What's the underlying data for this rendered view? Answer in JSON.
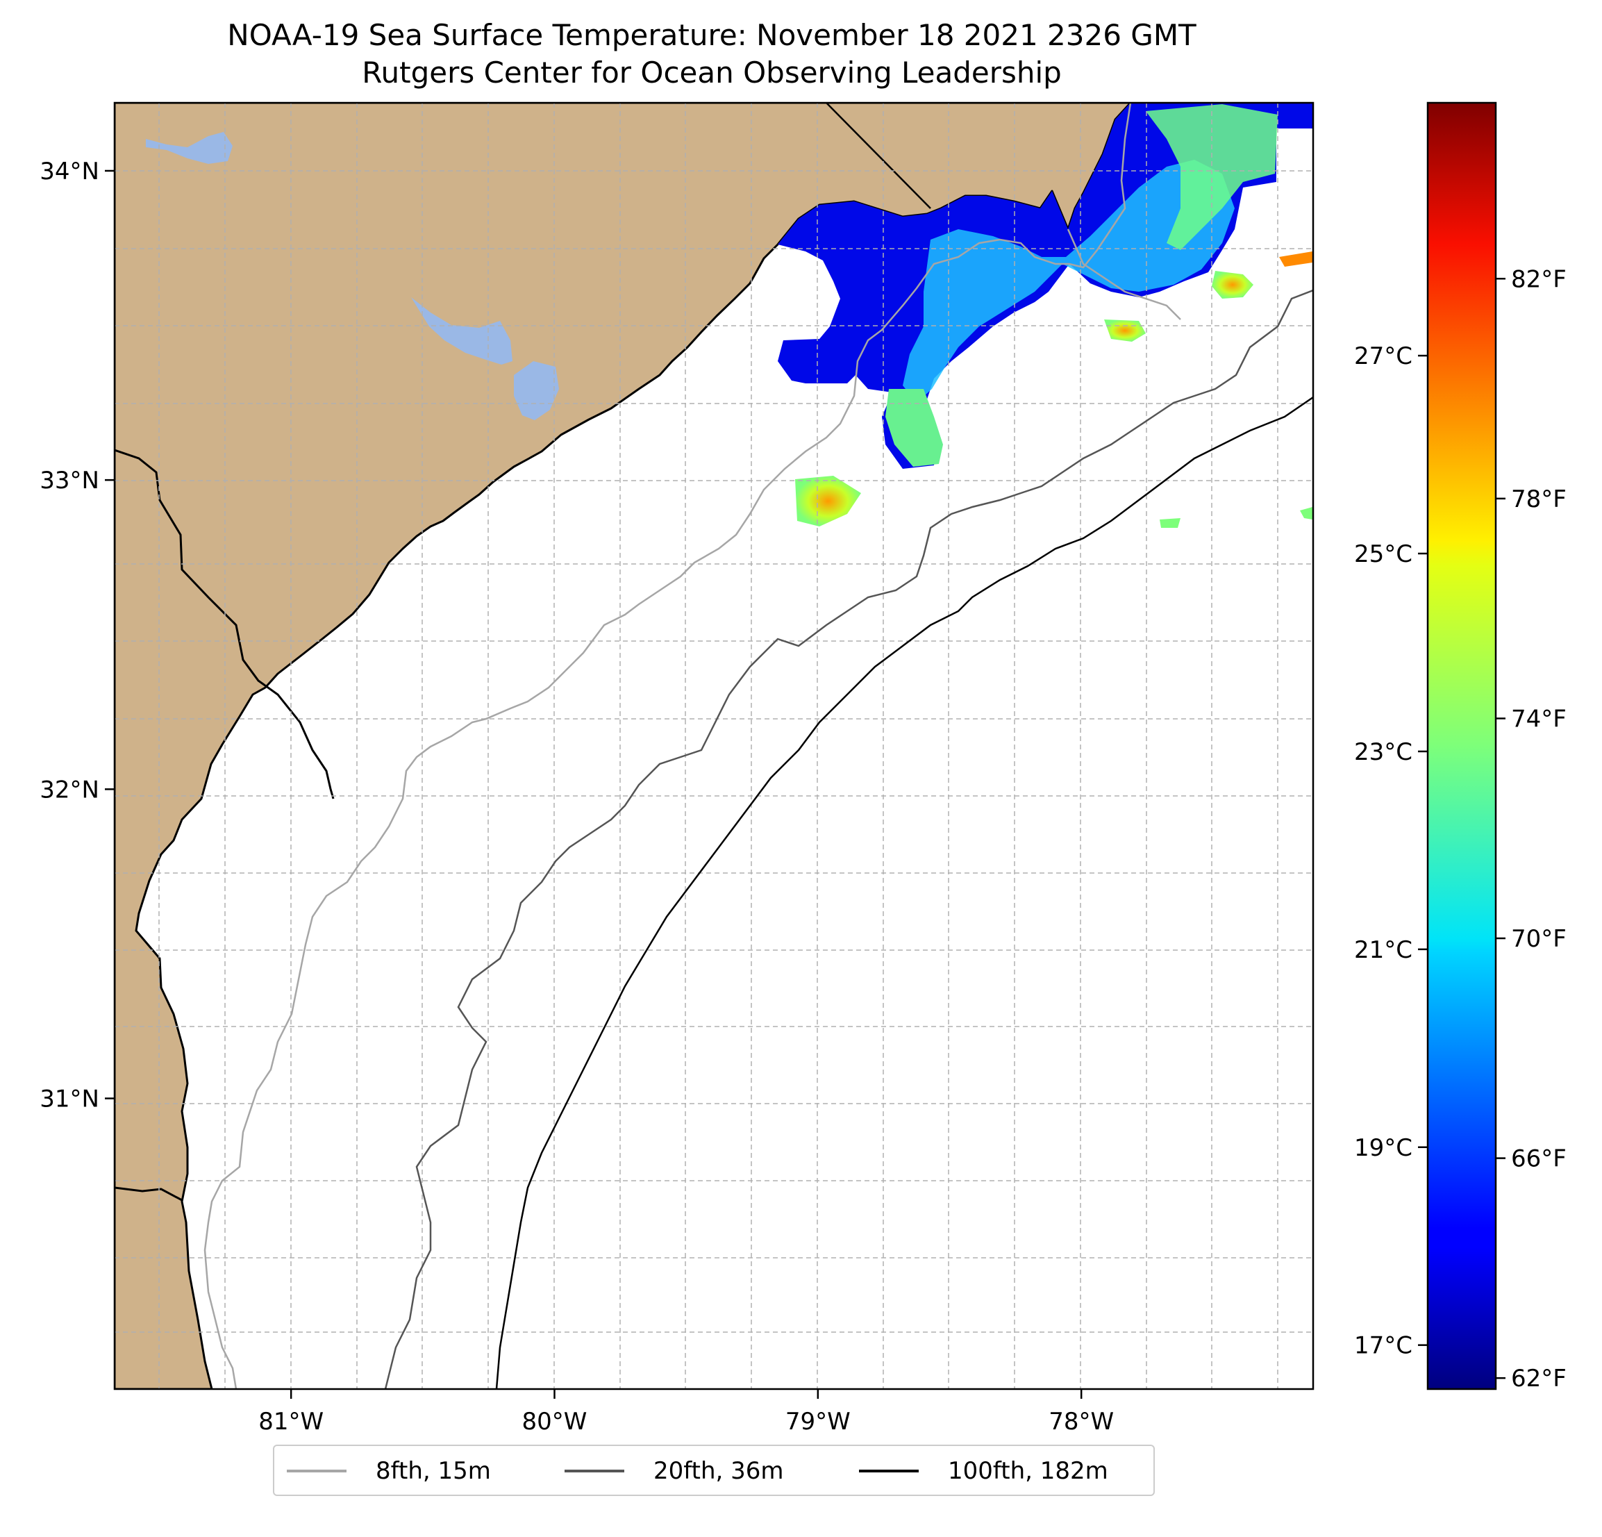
{
  "title": {
    "line1": "NOAA-19 Sea Surface Temperature: November 18 2021 2326 GMT",
    "line2": "Rutgers Center for Ocean Observing Leadership"
  },
  "map": {
    "lon_range": [
      -81.67,
      -77.12
    ],
    "lat_range": [
      30.06,
      34.22
    ],
    "lon_ticks": [
      {
        "value": -81,
        "label": "81°W"
      },
      {
        "value": -80,
        "label": "80°W"
      },
      {
        "value": -79,
        "label": "79°W"
      },
      {
        "value": -78,
        "label": "78°W"
      }
    ],
    "lat_ticks": [
      {
        "value": 31,
        "label": "31°N"
      },
      {
        "value": 32,
        "label": "32°N"
      },
      {
        "value": 33,
        "label": "33°N"
      },
      {
        "value": 34,
        "label": "34°N"
      }
    ],
    "grid": true,
    "land_color": "#cfb28a",
    "water_color": "#9ab8e6",
    "ocean_color": "#ffffff"
  },
  "colorbar": {
    "colormap": "jet",
    "range_f": [
      61.8,
      85.2
    ],
    "fahrenheit_ticks": [
      {
        "value": 62,
        "label": "62°F"
      },
      {
        "value": 66,
        "label": "66°F"
      },
      {
        "value": 70,
        "label": "70°F"
      },
      {
        "value": 74,
        "label": "74°F"
      },
      {
        "value": 78,
        "label": "78°F"
      },
      {
        "value": 82,
        "label": "82°F"
      }
    ],
    "celsius_ticks": [
      {
        "value": 17,
        "label": "17°C"
      },
      {
        "value": 19,
        "label": "19°C"
      },
      {
        "value": 21,
        "label": "21°C"
      },
      {
        "value": 23,
        "label": "23°C"
      },
      {
        "value": 25,
        "label": "25°C"
      },
      {
        "value": 27,
        "label": "27°C"
      }
    ]
  },
  "legend": {
    "placement": "bottom-center",
    "items": [
      {
        "label": "8fth, 15m",
        "color": "#a6a6a6"
      },
      {
        "label": "20fth, 36m",
        "color": "#555555"
      },
      {
        "label": "100fth, 182m",
        "color": "#000000"
      }
    ]
  }
}
